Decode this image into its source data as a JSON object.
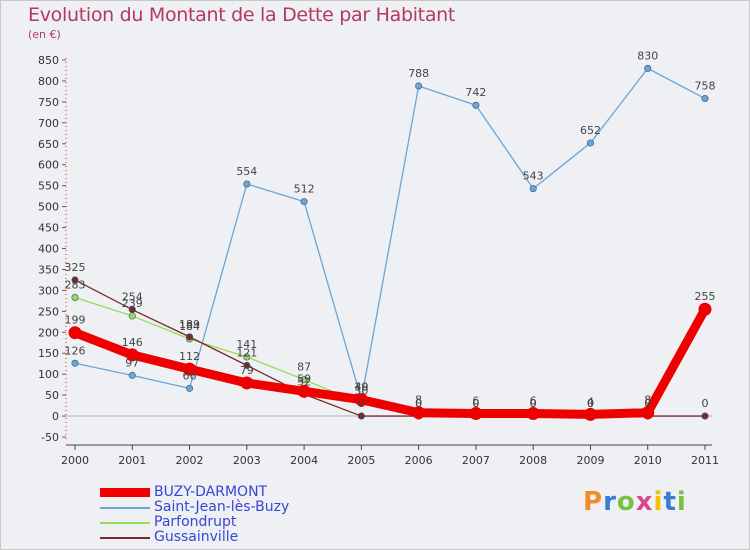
{
  "title": "Evolution du Montant de la Dette par Habitant",
  "unit": "(en €)",
  "logo": {
    "text": "Proxiti",
    "letter_colors": [
      "#f28c28",
      "#3a7bd5",
      "#7ac143",
      "#d94a8c",
      "#f2c100",
      "#3a7bd5",
      "#7ac143"
    ]
  },
  "chart_data": {
    "type": "line",
    "title": "Evolution du Montant de la Dette par Habitant",
    "ylabel": "(en €)",
    "xlabel": "",
    "x": [
      "2000",
      "2001",
      "2002",
      "2003",
      "2004",
      "2005",
      "2006",
      "2007",
      "2008",
      "2009",
      "2010",
      "2011"
    ],
    "ylim": [
      -50,
      850
    ],
    "yticks": [
      -50,
      0,
      50,
      100,
      150,
      200,
      250,
      300,
      350,
      400,
      450,
      500,
      550,
      600,
      650,
      700,
      750,
      800,
      850
    ],
    "grid": false,
    "legend_position": "bottom-left",
    "series": [
      {
        "name": "BUZY-DARMONT",
        "color": "#ee0000",
        "values": [
          199,
          146,
          112,
          79,
          59,
          39,
          8,
          6,
          6,
          4,
          8,
          255
        ],
        "labels": [
          "199",
          "146",
          "112",
          "79",
          "59",
          "39",
          "8",
          "6",
          "6",
          "4",
          "8",
          "255"
        ]
      },
      {
        "name": "Saint-Jean-lès-Buzy",
        "color": "#6aa6d8",
        "values": [
          126,
          97,
          66,
          554,
          512,
          40,
          788,
          742,
          543,
          652,
          830,
          758
        ],
        "labels": [
          "126",
          "97",
          "66",
          "554",
          "512",
          "40",
          "788",
          "742",
          "543",
          "652",
          "830",
          "758"
        ]
      },
      {
        "name": "Parfondrupt",
        "color": "#99dd55",
        "values": [
          283,
          239,
          184,
          141,
          87,
          30,
          0,
          0,
          0,
          0,
          0,
          null
        ],
        "labels": [
          "283",
          "239",
          "184",
          "141",
          "87",
          "30",
          "0",
          "0",
          "0",
          "0",
          "0",
          ""
        ]
      },
      {
        "name": "Gussainville",
        "color": "#7a2a2a",
        "values": [
          325,
          254,
          189,
          121,
          52,
          0,
          0,
          0,
          0,
          0,
          0,
          0
        ],
        "labels": [
          "325",
          "254",
          "189",
          "121",
          "52",
          "0",
          "0",
          "0",
          "0",
          "0",
          "0",
          "0"
        ]
      }
    ]
  }
}
